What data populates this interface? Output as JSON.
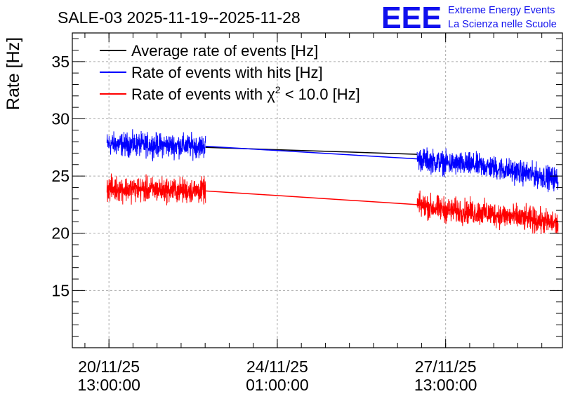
{
  "chart_data": {
    "type": "line",
    "title": "SALE-03 2025-11-19--2025-11-28",
    "ylabel": "Rate [Hz]",
    "xlabel": "",
    "ylim": [
      10,
      37.5
    ],
    "yticks": [
      15,
      20,
      25,
      30,
      35
    ],
    "x_unit": "days since 2025-11-19 00:00",
    "xlim": [
      0.78,
      10.97
    ],
    "xticks": [
      {
        "x": 1.5417,
        "line1": "20/11/25",
        "line2": "13:00:00"
      },
      {
        "x": 5.0417,
        "line1": "24/11/25",
        "line2": "01:00:00"
      },
      {
        "x": 8.5417,
        "line1": "27/11/25",
        "line2": "13:00:00"
      }
    ],
    "grid": true,
    "legend_position": "top-left",
    "segments": [
      {
        "start": 1.5,
        "end": 3.55
      },
      {
        "start": 7.95,
        "end": 10.88
      }
    ],
    "series": [
      {
        "name": "Average rate of events [Hz]",
        "color": "#000000",
        "points": [
          [
            3.55,
            27.5
          ],
          [
            7.95,
            26.9
          ]
        ]
      },
      {
        "name": "Rate of events with hits [Hz]",
        "color": "#0000ff",
        "points": [
          [
            1.5,
            27.8
          ],
          [
            3.55,
            27.6
          ],
          [
            7.95,
            26.5
          ],
          [
            8.6,
            26.1
          ],
          [
            9.3,
            25.9
          ],
          [
            10.0,
            25.4
          ],
          [
            10.88,
            24.7
          ]
        ],
        "noise": 1.5
      },
      {
        "name": "Rate of events with χ² < 10.0 [Hz]",
        "color": "#ff0000",
        "points": [
          [
            1.5,
            23.9
          ],
          [
            3.55,
            23.7
          ],
          [
            7.95,
            22.5
          ],
          [
            8.6,
            22.0
          ],
          [
            9.3,
            21.8
          ],
          [
            10.0,
            21.4
          ],
          [
            10.88,
            20.8
          ]
        ],
        "noise": 1.6
      }
    ],
    "legend": {
      "avg": "Average rate of events [Hz]",
      "hits": "Rate of events with hits [Hz]",
      "chi_prefix": "Rate of events with ",
      "chi_symbol": "χ",
      "chi_sup": "2",
      "chi_suffix": " < 10.0 [Hz]"
    }
  },
  "logo": {
    "mark": "EEE",
    "line1": "Extreme Energy Events",
    "line2": "La Scienza nelle Scuole",
    "color": "#1010ee"
  }
}
